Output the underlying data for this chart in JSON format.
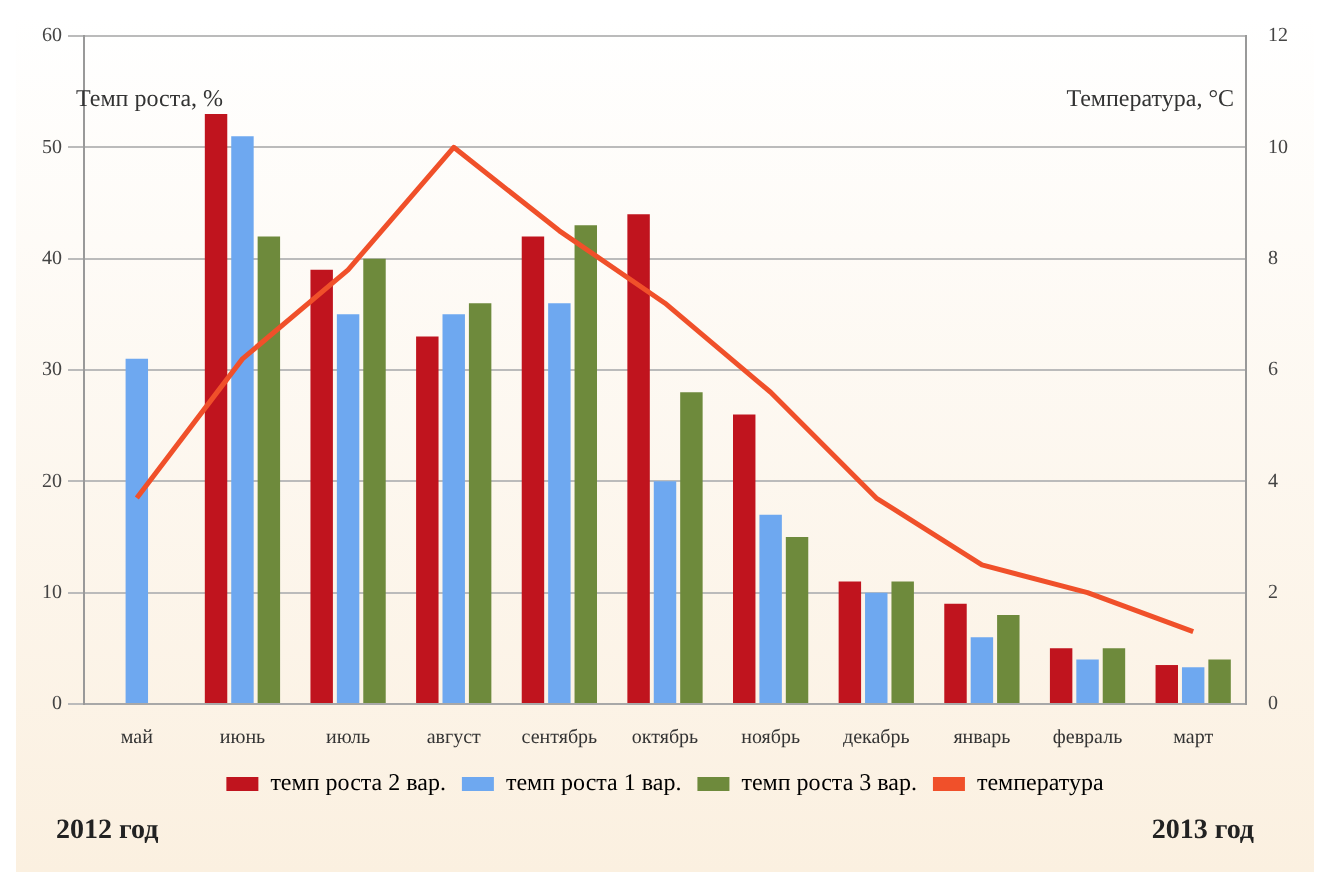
{
  "chart_data": {
    "type": "bar",
    "ylabel": "Темп роста,  %",
    "y2label": "Температура, °С",
    "categories": [
      "май",
      "июнь",
      "июль",
      "август",
      "сентябрь",
      "октябрь",
      "ноябрь",
      "декабрь",
      "январь",
      "февраль",
      "март"
    ],
    "series": [
      {
        "name": "темп роста 2 вар.",
        "color": "#c0141e",
        "values": [
          null,
          53,
          39,
          33,
          42,
          44,
          26,
          11,
          9,
          5,
          3.5
        ]
      },
      {
        "name": "темп роста 1 вар.",
        "color": "#6ea8f0",
        "values": [
          31,
          51,
          35,
          35,
          36,
          20,
          17,
          10,
          6,
          4,
          3.3
        ]
      },
      {
        "name": "темп роста 3 вар.",
        "color": "#6e8a3c",
        "values": [
          null,
          42,
          40,
          36,
          43,
          28,
          15,
          11,
          8,
          5,
          4
        ]
      },
      {
        "name": "температура",
        "type": "line",
        "axis": "y2",
        "color": "#f0502a",
        "values": [
          3.7,
          6.2,
          7.8,
          10,
          8.5,
          7.2,
          5.6,
          3.7,
          2.5,
          2,
          1.3
        ]
      }
    ],
    "ylim": [
      0,
      60
    ],
    "yticks": [
      0,
      10,
      20,
      30,
      40,
      50,
      60
    ],
    "y2lim": [
      0,
      12
    ],
    "y2ticks": [
      0,
      2,
      4,
      6,
      8,
      10,
      12
    ],
    "grid": "y",
    "legend": "bottom",
    "marker": "none",
    "annotations": [
      "2012 год",
      "2013 год"
    ]
  }
}
